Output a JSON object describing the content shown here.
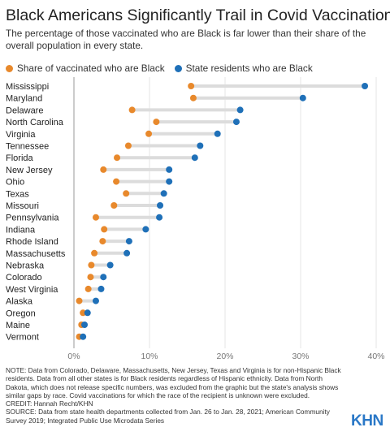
{
  "title": "Black Americans Significantly Trail in Covid Vaccinations",
  "subtitle": "The percentage of those vaccinated who are Black is far lower than their share of the overall population in every state.",
  "colors": {
    "vaccinated": "#e8892c",
    "residents": "#1f70b8",
    "line": "#dcdcdc",
    "axis": "#999999",
    "grid": "#e6e6e6"
  },
  "chart_data": {
    "type": "scatter",
    "subtype": "dumbbell",
    "series": [
      {
        "name": "Share of vaccinated who are Black",
        "key": "vaccinated"
      },
      {
        "name": "State residents who are Black",
        "key": "residents"
      }
    ],
    "categories": [
      "Mississippi",
      "Maryland",
      "Delaware",
      "North Carolina",
      "Virginia",
      "Tennessee",
      "Florida",
      "New Jersey",
      "Ohio",
      "Texas",
      "Missouri",
      "Pennsylvania",
      "Indiana",
      "Rhode Island",
      "Massachusetts",
      "Nebraska",
      "Colorado",
      "West Virginia",
      "Alaska",
      "Oregon",
      "Maine",
      "Vermont"
    ],
    "vaccinated": [
      15.5,
      15.8,
      7.7,
      10.9,
      9.9,
      7.2,
      5.7,
      3.9,
      5.6,
      6.9,
      5.3,
      2.9,
      4.0,
      3.8,
      2.7,
      2.3,
      2.2,
      1.9,
      0.7,
      1.2,
      1.0,
      0.7
    ],
    "residents": [
      38.5,
      30.3,
      22.0,
      21.5,
      19.0,
      16.7,
      16.0,
      12.6,
      12.6,
      11.9,
      11.4,
      11.3,
      9.5,
      7.3,
      7.0,
      4.8,
      3.9,
      3.6,
      2.9,
      1.8,
      1.4,
      1.2
    ],
    "xlim": [
      0,
      40
    ],
    "xticks": [
      0,
      10,
      20,
      30,
      40
    ],
    "xtick_labels": [
      "0%",
      "10%",
      "20%",
      "30%",
      "40%"
    ],
    "legend_position": "top-left",
    "grid": true
  },
  "notes": {
    "note": "NOTE: Data from Colorado, Delaware, Massachusetts, New Jersey, Texas and Virginia is for non-Hispanic Black residents. Data from all other states is for Black residents regardless of Hispanic ethnicity. Data from North Dakota, which does not release specific numbers, was excluded from the graphic but the state's analysis shows similar gaps by race. Covid vaccinations for which the race of the recipient is unknown were excluded.",
    "credit": "CREDIT: Hannah Recht/KHN",
    "source": "SOURCE: Data from state health departments collected from Jan. 26 to Jan. 28, 2021; American Community Survey 2019; Integrated Public Use Microdata Series"
  },
  "logo": "KHN"
}
